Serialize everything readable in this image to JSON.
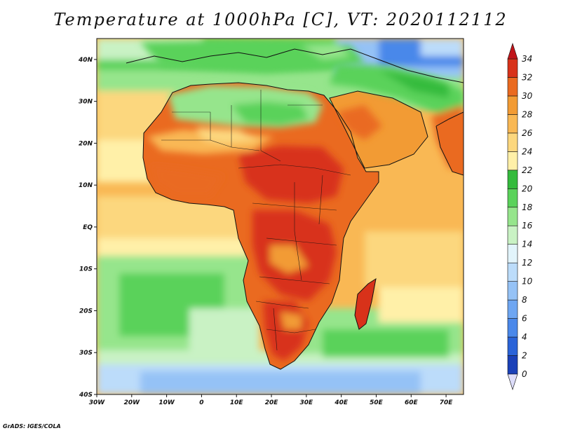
{
  "title": "Temperature at 1000hPa [C], VT: 2020112112",
  "credit": "GrADS: IGES/COLA",
  "map": {
    "lon_range": [
      -30,
      75
    ],
    "lat_range": [
      -40,
      45
    ],
    "lon_ticks": [
      {
        "value": -30,
        "label": "30W"
      },
      {
        "value": -20,
        "label": "20W"
      },
      {
        "value": -10,
        "label": "10W"
      },
      {
        "value": 0,
        "label": "0"
      },
      {
        "value": 10,
        "label": "10E"
      },
      {
        "value": 20,
        "label": "20E"
      },
      {
        "value": 30,
        "label": "30E"
      },
      {
        "value": 40,
        "label": "40E"
      },
      {
        "value": 50,
        "label": "50E"
      },
      {
        "value": 60,
        "label": "60E"
      },
      {
        "value": 70,
        "label": "70E"
      }
    ],
    "lat_ticks": [
      {
        "value": 40,
        "label": "40N"
      },
      {
        "value": 30,
        "label": "30N"
      },
      {
        "value": 20,
        "label": "20N"
      },
      {
        "value": 10,
        "label": "10N"
      },
      {
        "value": 0,
        "label": "EQ"
      },
      {
        "value": -10,
        "label": "10S"
      },
      {
        "value": -20,
        "label": "20S"
      },
      {
        "value": -30,
        "label": "30S"
      },
      {
        "value": -40,
        "label": "40S"
      }
    ]
  },
  "colorbar": {
    "levels": [
      0,
      2,
      4,
      6,
      8,
      10,
      12,
      14,
      16,
      18,
      20,
      22,
      24,
      26,
      28,
      30,
      32,
      34
    ],
    "colors": [
      "#0d1f7a",
      "#1a40b8",
      "#2a63d8",
      "#4a88ea",
      "#6ea6f2",
      "#95c2f6",
      "#bcdcfa",
      "#e2f4fb",
      "#c9f2c4",
      "#96e58c",
      "#5ad25a",
      "#34bb3c",
      "#fff0a8",
      "#fcd77e",
      "#f9b854",
      "#f29b34",
      "#ea6a20",
      "#d8321a",
      "#c0141a"
    ],
    "under_color": "#ddddfa",
    "over_color": "#c0141a"
  }
}
